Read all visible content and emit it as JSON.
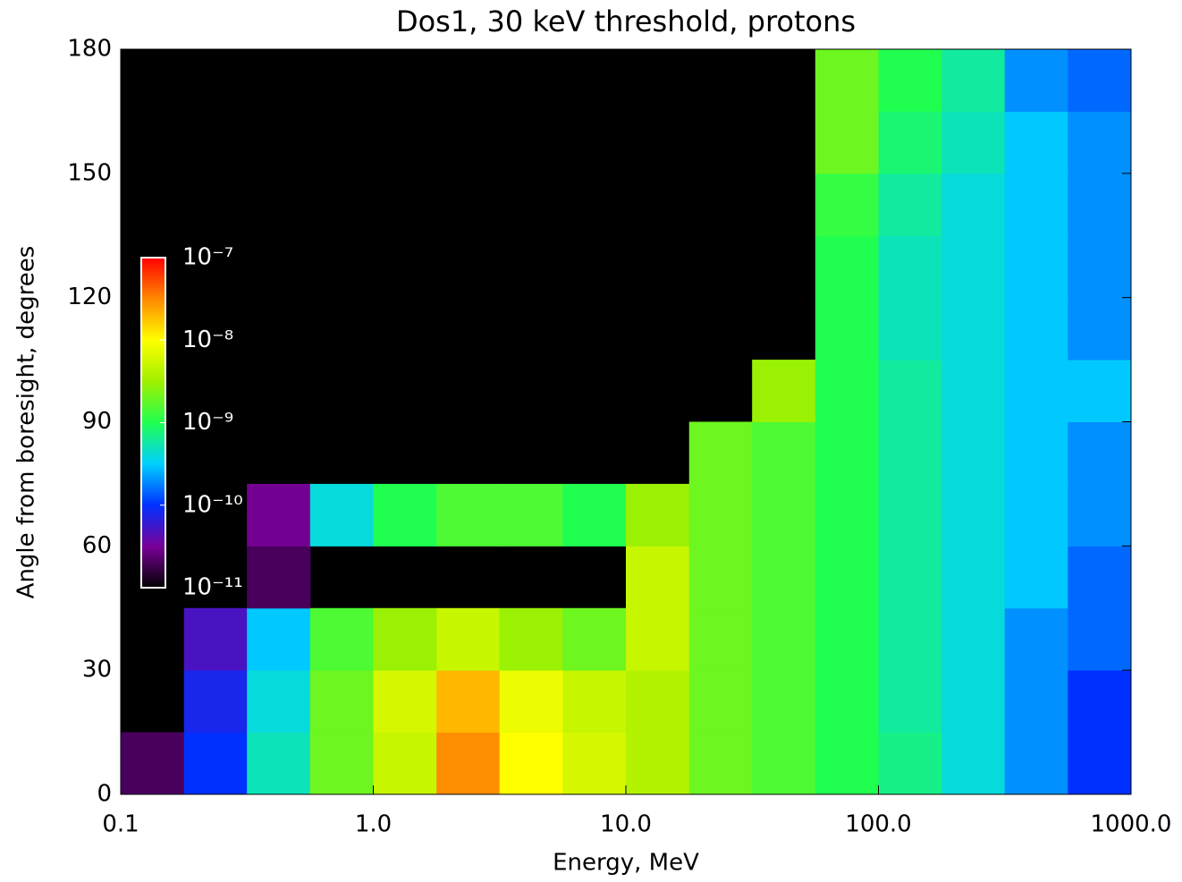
{
  "chart_data": {
    "type": "heatmap",
    "title": "Dos1, 30 keV threshold, protons",
    "x_label": "Energy, MeV",
    "y_label": "Angle from boresight, degrees",
    "x_log": true,
    "xlim": [
      0.1,
      1000
    ],
    "xticks": [
      {
        "value": 0.1,
        "label": "0.1"
      },
      {
        "value": 1,
        "label": "1.0"
      },
      {
        "value": 10,
        "label": "10.0"
      },
      {
        "value": 100,
        "label": "100.0"
      },
      {
        "value": 1000,
        "label": "1000.0"
      }
    ],
    "ylim": [
      0,
      180
    ],
    "yticks": [
      0,
      30,
      60,
      90,
      120,
      150,
      180
    ],
    "x_bins": [
      0.1,
      0.178,
      0.316,
      0.562,
      1,
      1.78,
      3.16,
      5.62,
      10,
      17.8,
      31.6,
      56.2,
      100,
      178,
      316,
      562,
      1000
    ],
    "y_bins": [
      0,
      15,
      30,
      45,
      60,
      75,
      90,
      105,
      120,
      135,
      150,
      165,
      180
    ],
    "background": "#000000",
    "z_log": true,
    "zlim": [
      1e-11,
      1e-07
    ],
    "zticks": [
      {
        "value": 1e-07,
        "label": "10⁻⁷"
      },
      {
        "value": 1e-08,
        "label": "10⁻⁸"
      },
      {
        "value": 1e-09,
        "label": "10⁻⁹"
      },
      {
        "value": 1e-10,
        "label": "10⁻¹⁰"
      },
      {
        "value": 1e-11,
        "label": "10⁻¹¹"
      }
    ],
    "colorscale": [
      "#000000",
      "#7a0099",
      "#0030ff",
      "#00d0ff",
      "#20ff50",
      "#a0f000",
      "#ffff00",
      "#ff8800",
      "#ff0000"
    ],
    "z": [
      [
        2e-11,
        1e-10,
        5e-10,
        2e-09,
        5e-09,
        3e-08,
        1e-08,
        6e-09,
        4e-09,
        2e-09,
        1.5e-09,
        1e-09,
        7e-10,
        4e-10,
        2e-10,
        1e-10
      ],
      [
        null,
        8e-11,
        4e-10,
        2e-09,
        6e-09,
        2e-08,
        8e-09,
        5e-09,
        4e-09,
        2e-09,
        1.5e-09,
        1e-09,
        6e-10,
        4e-10,
        2e-10,
        1e-10
      ],
      [
        null,
        5e-11,
        3e-10,
        1.5e-09,
        3e-09,
        5e-09,
        3e-09,
        2e-09,
        5e-09,
        2e-09,
        1.5e-09,
        1e-09,
        6e-10,
        4e-10,
        2e-10,
        1.5e-10
      ],
      [
        null,
        null,
        2e-11,
        null,
        null,
        null,
        null,
        null,
        5e-09,
        2e-09,
        1.5e-09,
        1e-09,
        6e-10,
        4e-10,
        3e-10,
        1.5e-10
      ],
      [
        null,
        null,
        3e-11,
        4e-10,
        1e-09,
        1.5e-09,
        1.5e-09,
        1e-09,
        3e-09,
        2e-09,
        1.5e-09,
        1e-09,
        6e-10,
        4e-10,
        3e-10,
        2e-10
      ],
      [
        null,
        null,
        null,
        null,
        null,
        null,
        null,
        null,
        null,
        2e-09,
        1.5e-09,
        1e-09,
        6e-10,
        4e-10,
        3e-10,
        2e-10
      ],
      [
        null,
        null,
        null,
        null,
        null,
        null,
        null,
        null,
        null,
        null,
        3e-09,
        1e-09,
        6e-10,
        4e-10,
        3e-10,
        3e-10
      ],
      [
        null,
        null,
        null,
        null,
        null,
        null,
        null,
        null,
        null,
        null,
        null,
        1e-09,
        5e-10,
        4e-10,
        3e-10,
        2e-10
      ],
      [
        null,
        null,
        null,
        null,
        null,
        null,
        null,
        null,
        null,
        null,
        null,
        1e-09,
        5e-10,
        4e-10,
        3e-10,
        2e-10
      ],
      [
        null,
        null,
        null,
        null,
        null,
        null,
        null,
        null,
        null,
        null,
        null,
        1.2e-09,
        6e-10,
        4e-10,
        3e-10,
        2e-10
      ],
      [
        null,
        null,
        null,
        null,
        null,
        null,
        null,
        null,
        null,
        null,
        null,
        2e-09,
        8e-10,
        5e-10,
        3e-10,
        2e-10
      ],
      [
        null,
        null,
        null,
        null,
        null,
        null,
        null,
        null,
        null,
        null,
        null,
        2e-09,
        1e-09,
        6e-10,
        2e-10,
        1.5e-10
      ]
    ]
  }
}
